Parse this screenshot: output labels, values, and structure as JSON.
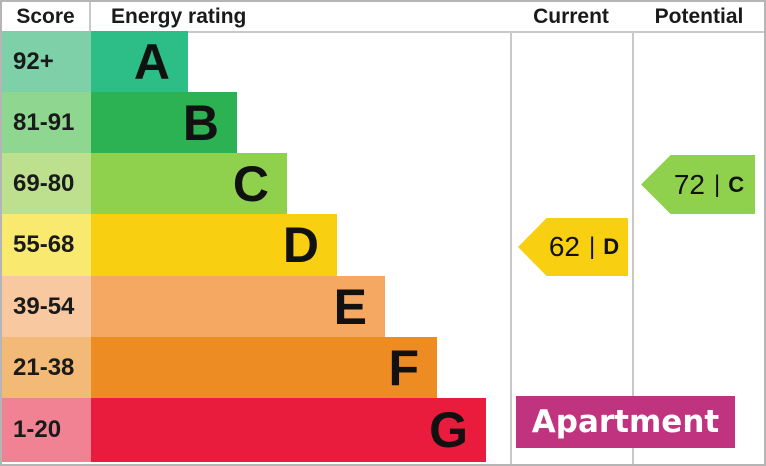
{
  "header": {
    "score": "Score",
    "energy_rating": "Energy rating",
    "current": "Current",
    "potential": "Potential"
  },
  "separator": "|",
  "chart_data": {
    "type": "bar",
    "title": "Energy rating",
    "description": "EPC energy efficiency rating chart with score bands A-G, current and potential ratings",
    "categories": [
      "A",
      "B",
      "C",
      "D",
      "E",
      "F",
      "G"
    ],
    "bands": [
      {
        "letter": "A",
        "score_range": "92+",
        "bar_color": "#2dbe87",
        "score_cell_color": "#7ed0a9"
      },
      {
        "letter": "B",
        "score_range": "81-91",
        "bar_color": "#2cb252",
        "score_cell_color": "#8fd690"
      },
      {
        "letter": "C",
        "score_range": "69-80",
        "bar_color": "#8fd04d",
        "score_cell_color": "#bce08e"
      },
      {
        "letter": "D",
        "score_range": "55-68",
        "bar_color": "#f8d011",
        "score_cell_color": "#fae96f"
      },
      {
        "letter": "E",
        "score_range": "39-54",
        "bar_color": "#f5a861",
        "score_cell_color": "#f8c9a0"
      },
      {
        "letter": "F",
        "score_range": "21-38",
        "bar_color": "#ed8c23",
        "score_cell_color": "#f3b976"
      },
      {
        "letter": "G",
        "score_range": "1-20",
        "bar_color": "#e91c3d",
        "score_cell_color": "#f08294"
      }
    ],
    "current": {
      "value": "62",
      "band": "D",
      "arrow_color": "#f8d011"
    },
    "potential": {
      "value": "72",
      "band": "C",
      "arrow_color": "#8fd04d"
    },
    "property_type": "Apartment",
    "property_type_color": "#c0337e",
    "grid_line_color": "#c9c9c9"
  }
}
